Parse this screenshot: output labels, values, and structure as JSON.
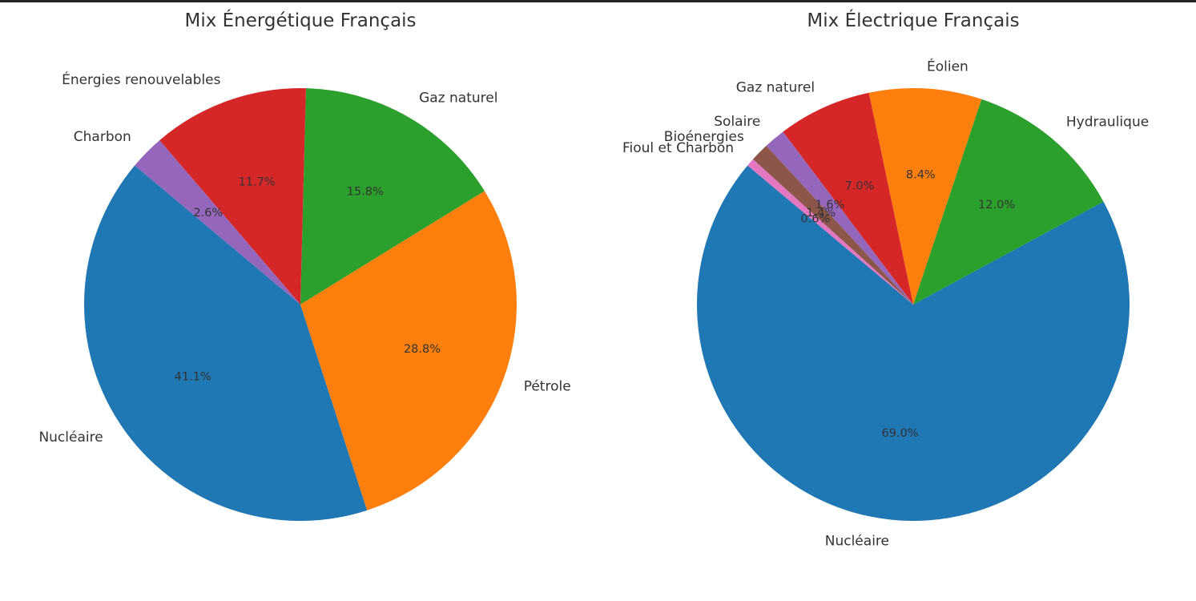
{
  "chart_data": [
    {
      "type": "pie",
      "title": "Mix Énergétique Français",
      "categories": [
        "Nucléaire",
        "Pétrole",
        "Gaz naturel",
        "Énergies renouvelables",
        "Charbon"
      ],
      "values": [
        41.1,
        28.8,
        15.8,
        11.7,
        2.6
      ],
      "labels": [
        "41.1%",
        "28.8%",
        "15.8%",
        "11.7%",
        "2.6%"
      ],
      "colors": [
        "#1f77b4",
        "#ff7f0e",
        "#2ca02c",
        "#d62728",
        "#9467bd"
      ],
      "start_angle_deg": 140,
      "direction": "counterclockwise",
      "legend": "none"
    },
    {
      "type": "pie",
      "title": "Mix Électrique Français",
      "categories": [
        "Nucléaire",
        "Hydraulique",
        "Éolien",
        "Gaz naturel",
        "Solaire",
        "Bioénergies",
        "Fioul et Charbon"
      ],
      "values": [
        69.0,
        12.0,
        8.4,
        7.0,
        1.6,
        1.4,
        0.6
      ],
      "labels": [
        "69.0%",
        "12.0%",
        "8.4%",
        "7.0%",
        "1.6%",
        "1.4%",
        "0.6%"
      ],
      "colors": [
        "#1f77b4",
        "#2ca02c",
        "#ff7f0e",
        "#d62728",
        "#9467bd",
        "#8c564b",
        "#e377c2"
      ],
      "start_angle_deg": 140,
      "direction": "counterclockwise",
      "legend": "none"
    }
  ]
}
